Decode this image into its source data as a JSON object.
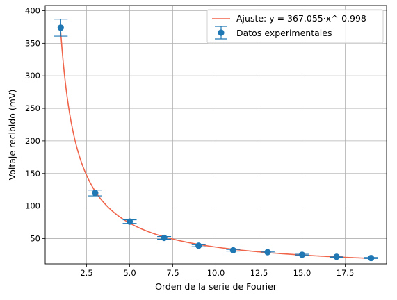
{
  "chart_data": {
    "type": "scatter",
    "xlabel": "Orden de la serie de Fourier",
    "ylabel": "Voltaje recibido (mV)",
    "xlim": [
      0.1,
      19.9
    ],
    "ylim": [
      11,
      408
    ],
    "xticks": [
      2.5,
      5.0,
      7.5,
      10.0,
      12.5,
      15.0,
      17.5
    ],
    "xtick_labels": [
      "2.5",
      "5.0",
      "7.5",
      "10.0",
      "12.5",
      "15.0",
      "17.5"
    ],
    "yticks": [
      50,
      100,
      150,
      200,
      250,
      300,
      350,
      400
    ],
    "ytick_labels": [
      "50",
      "100",
      "150",
      "200",
      "250",
      "300",
      "350",
      "400"
    ],
    "grid": true,
    "legend_position": "top-right",
    "series": [
      {
        "name": "Ajuste: y = 367.055·x^-0.998",
        "kind": "line",
        "color": "#f0644a",
        "fit": {
          "a": 367.055,
          "b": -0.998,
          "x_range": [
            1,
            19
          ]
        }
      },
      {
        "name": "Datos experimentales",
        "kind": "errorbar",
        "color": "#1f77b4",
        "x": [
          1,
          3,
          5,
          7,
          9,
          11,
          13,
          15,
          17,
          19
        ],
        "y": [
          374,
          120,
          76,
          51,
          39,
          32,
          29,
          25,
          22,
          20
        ],
        "yerr": [
          13,
          4.5,
          2.8,
          2.1,
          1.6,
          1.3,
          1.1,
          0.9,
          0.8,
          0.7
        ]
      }
    ]
  }
}
